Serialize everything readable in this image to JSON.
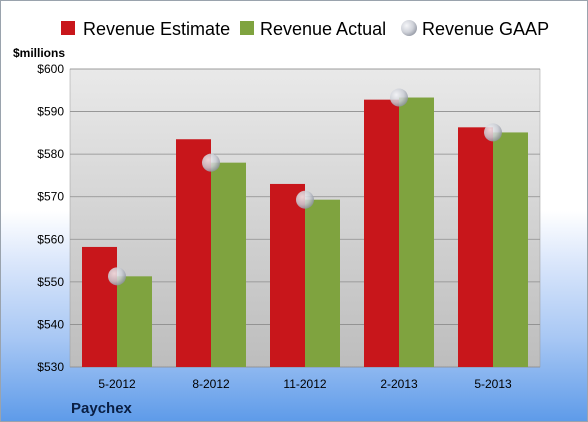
{
  "chart_data": {
    "type": "bar",
    "unit_label": "$millions",
    "company": "Paychex",
    "categories": [
      "5-2012",
      "8-2012",
      "11-2012",
      "2-2013",
      "5-2013"
    ],
    "series": [
      {
        "name": "Revenue Estimate",
        "kind": "bar",
        "color": "#c8161b",
        "values": [
          558.2,
          583.5,
          573.0,
          592.8,
          586.3
        ]
      },
      {
        "name": "Revenue Actual",
        "kind": "bar",
        "color": "#7fa33f",
        "values": [
          551.3,
          578.0,
          569.3,
          593.3,
          585.1
        ]
      },
      {
        "name": "Revenue GAAP",
        "kind": "marker",
        "color": "#c9ccd4",
        "values": [
          551.3,
          578.0,
          569.3,
          593.3,
          585.1
        ]
      }
    ],
    "ylim": [
      530,
      600
    ],
    "y_ticks": [
      "$530",
      "$540",
      "$550",
      "$560",
      "$570",
      "$580",
      "$590",
      "$600"
    ],
    "y_tick_values": [
      530,
      540,
      550,
      560,
      570,
      580,
      590,
      600
    ],
    "grid": true,
    "legend_position": "top"
  }
}
